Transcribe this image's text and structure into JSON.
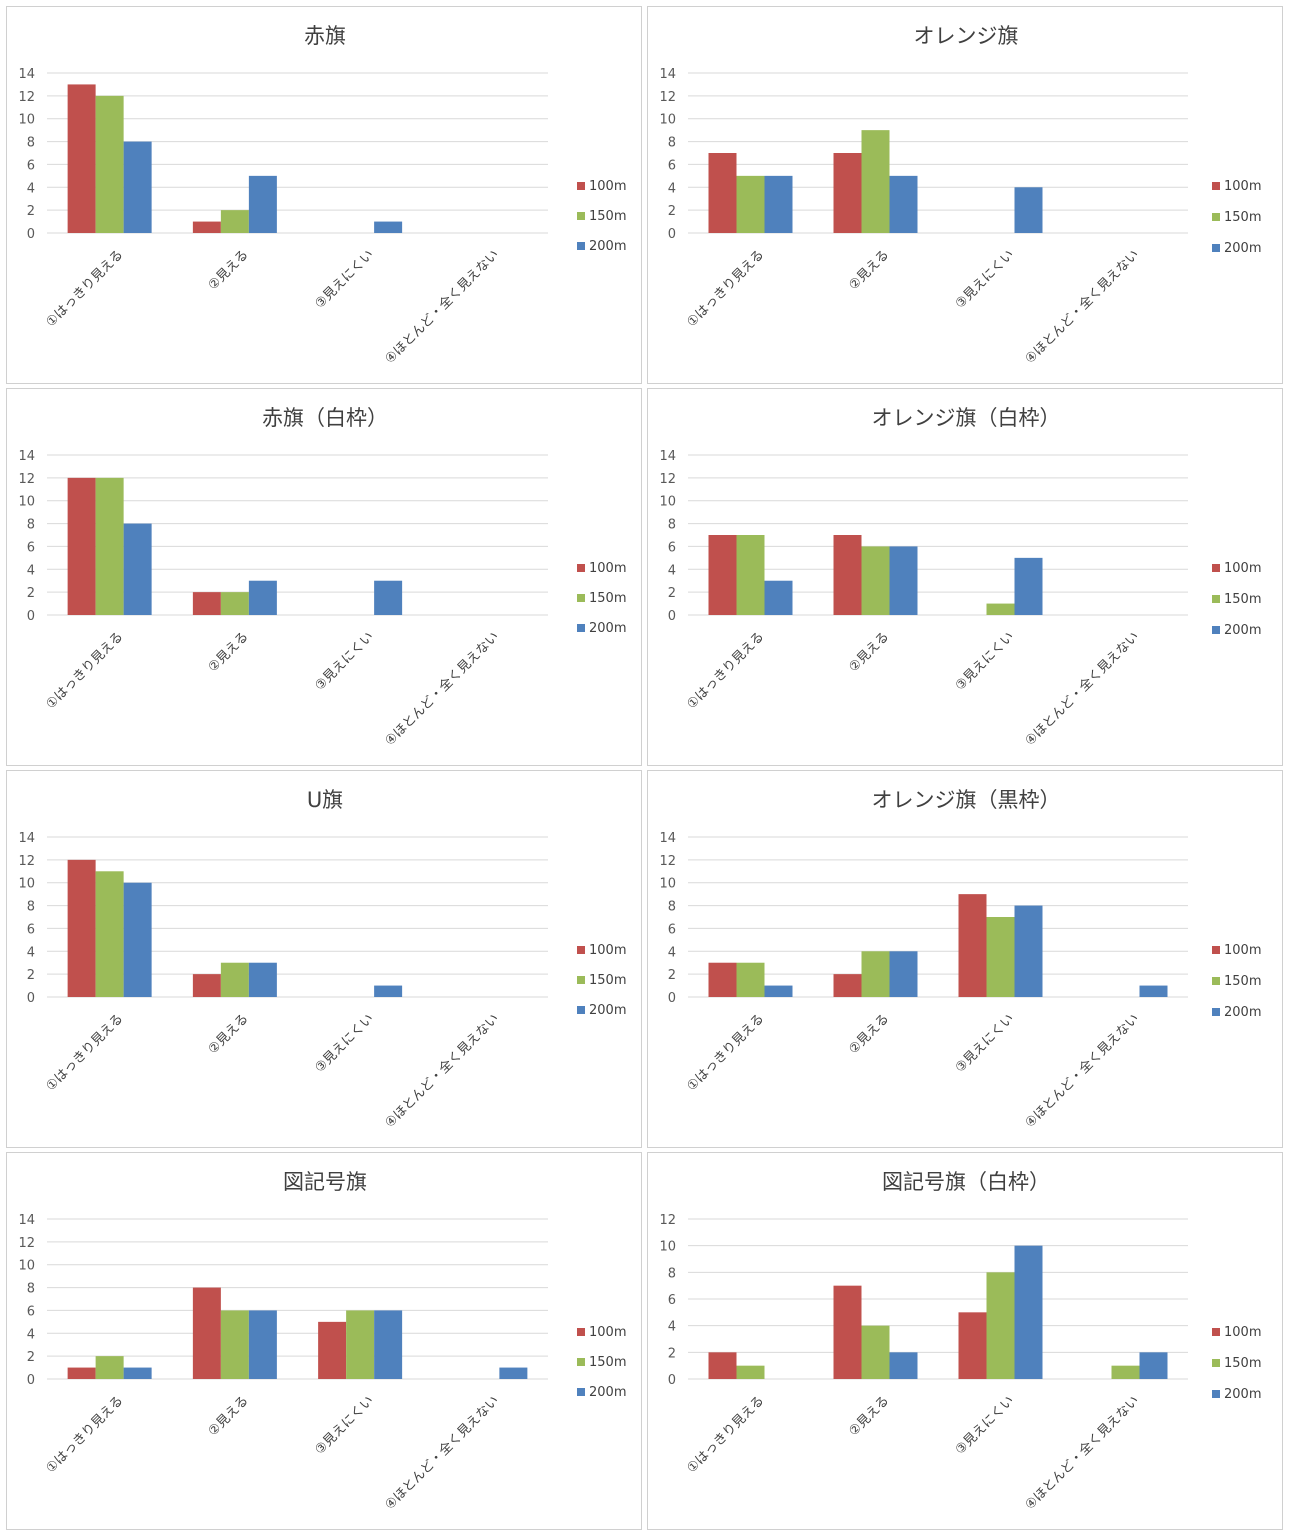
{
  "colors": {
    "100m": "#c0504d",
    "150m": "#9bbb59",
    "200m": "#4f81bd",
    "grid": "#d9d9d9"
  },
  "legend": [
    "100m",
    "150m",
    "200m"
  ],
  "categories": [
    "①はっきり見える",
    "②見える",
    "③見えにくい",
    "④ほとんど・全く見えない"
  ],
  "chart_data": [
    {
      "type": "bar",
      "title": "赤旗",
      "ylim": [
        0,
        14
      ],
      "yticks": [
        0,
        2,
        4,
        6,
        8,
        10,
        12,
        14
      ],
      "categories": [
        "①はっきり見える",
        "②見える",
        "③見えにくい",
        "④ほとんど・全く見えない"
      ],
      "series": [
        {
          "name": "100m",
          "values": [
            13,
            1,
            0,
            0
          ]
        },
        {
          "name": "150m",
          "values": [
            12,
            2,
            0,
            0
          ]
        },
        {
          "name": "200m",
          "values": [
            8,
            5,
            1,
            0
          ]
        }
      ],
      "legend_position": "right",
      "grid": true
    },
    {
      "type": "bar",
      "title": "オレンジ旗",
      "ylim": [
        0,
        14
      ],
      "yticks": [
        0,
        2,
        4,
        6,
        8,
        10,
        12,
        14
      ],
      "categories": [
        "①はっきり見える",
        "②見える",
        "③見えにくい",
        "④ほとんど・全く見えない"
      ],
      "series": [
        {
          "name": "100m",
          "values": [
            7,
            7,
            0,
            0
          ]
        },
        {
          "name": "150m",
          "values": [
            5,
            9,
            0,
            0
          ]
        },
        {
          "name": "200m",
          "values": [
            5,
            5,
            4,
            0
          ]
        }
      ],
      "legend_position": "right",
      "grid": true
    },
    {
      "type": "bar",
      "title": "赤旗（白枠）",
      "ylim": [
        0,
        14
      ],
      "yticks": [
        0,
        2,
        4,
        6,
        8,
        10,
        12,
        14
      ],
      "categories": [
        "①はっきり見える",
        "②見える",
        "③見えにくい",
        "④ほとんど・全く見えない"
      ],
      "series": [
        {
          "name": "100m",
          "values": [
            12,
            2,
            0,
            0
          ]
        },
        {
          "name": "150m",
          "values": [
            12,
            2,
            0,
            0
          ]
        },
        {
          "name": "200m",
          "values": [
            8,
            3,
            3,
            0
          ]
        }
      ],
      "legend_position": "right",
      "grid": true
    },
    {
      "type": "bar",
      "title": "オレンジ旗（白枠）",
      "ylim": [
        0,
        14
      ],
      "yticks": [
        0,
        2,
        4,
        6,
        8,
        10,
        12,
        14
      ],
      "categories": [
        "①はっきり見える",
        "②見える",
        "③見えにくい",
        "④ほとんど・全く見えない"
      ],
      "series": [
        {
          "name": "100m",
          "values": [
            7,
            7,
            0,
            0
          ]
        },
        {
          "name": "150m",
          "values": [
            7,
            6,
            1,
            0
          ]
        },
        {
          "name": "200m",
          "values": [
            3,
            6,
            5,
            0
          ]
        }
      ],
      "legend_position": "right",
      "grid": true
    },
    {
      "type": "bar",
      "title": "U旗",
      "ylim": [
        0,
        14
      ],
      "yticks": [
        0,
        2,
        4,
        6,
        8,
        10,
        12,
        14
      ],
      "categories": [
        "①はっきり見える",
        "②見える",
        "③見えにくい",
        "④ほとんど・全く見えない"
      ],
      "series": [
        {
          "name": "100m",
          "values": [
            12,
            2,
            0,
            0
          ]
        },
        {
          "name": "150m",
          "values": [
            11,
            3,
            0,
            0
          ]
        },
        {
          "name": "200m",
          "values": [
            10,
            3,
            1,
            0
          ]
        }
      ],
      "legend_position": "right",
      "grid": true
    },
    {
      "type": "bar",
      "title": "オレンジ旗（黒枠）",
      "ylim": [
        0,
        14
      ],
      "yticks": [
        0,
        2,
        4,
        6,
        8,
        10,
        12,
        14
      ],
      "categories": [
        "①はっきり見える",
        "②見える",
        "③見えにくい",
        "④ほとんど・全く見えない"
      ],
      "series": [
        {
          "name": "100m",
          "values": [
            3,
            2,
            9,
            0
          ]
        },
        {
          "name": "150m",
          "values": [
            3,
            4,
            7,
            0
          ]
        },
        {
          "name": "200m",
          "values": [
            1,
            4,
            8,
            1
          ]
        }
      ],
      "legend_position": "right",
      "grid": true
    },
    {
      "type": "bar",
      "title": "図記号旗",
      "ylim": [
        0,
        14
      ],
      "yticks": [
        0,
        2,
        4,
        6,
        8,
        10,
        12,
        14
      ],
      "categories": [
        "①はっきり見える",
        "②見える",
        "③見えにくい",
        "④ほとんど・全く見えない"
      ],
      "series": [
        {
          "name": "100m",
          "values": [
            1,
            8,
            5,
            0
          ]
        },
        {
          "name": "150m",
          "values": [
            2,
            6,
            6,
            0
          ]
        },
        {
          "name": "200m",
          "values": [
            1,
            6,
            6,
            1
          ]
        }
      ],
      "legend_position": "right",
      "grid": true
    },
    {
      "type": "bar",
      "title": "図記号旗（白枠）",
      "ylim": [
        0,
        12
      ],
      "yticks": [
        0,
        2,
        4,
        6,
        8,
        10,
        12
      ],
      "categories": [
        "①はっきり見える",
        "②見える",
        "③見えにくい",
        "④ほとんど・全く見えない"
      ],
      "series": [
        {
          "name": "100m",
          "values": [
            2,
            7,
            5,
            0
          ]
        },
        {
          "name": "150m",
          "values": [
            1,
            4,
            8,
            1
          ]
        },
        {
          "name": "200m",
          "values": [
            0,
            2,
            10,
            2
          ]
        }
      ],
      "legend_position": "right",
      "grid": true
    }
  ]
}
